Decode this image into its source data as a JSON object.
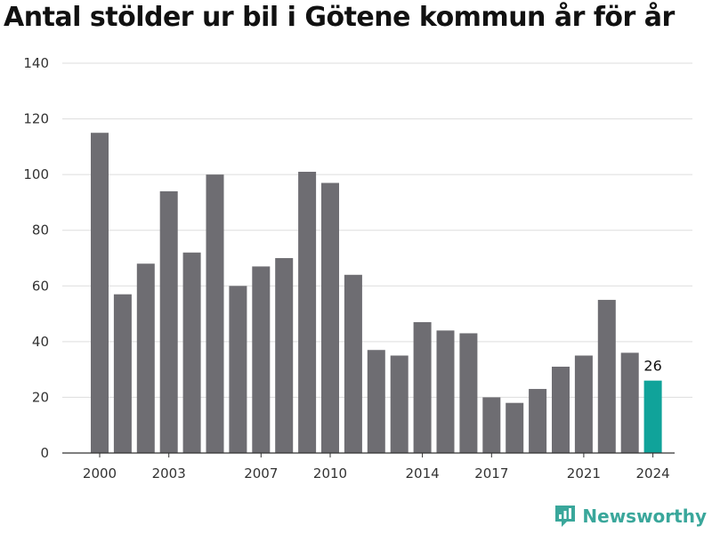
{
  "chart_data": {
    "type": "bar",
    "title": "Antal stölder ur bil i Götene kommun år för år",
    "xlabel": "",
    "ylabel": "",
    "ylim": [
      0,
      140
    ],
    "yticks": [
      0,
      20,
      40,
      60,
      80,
      100,
      120,
      140
    ],
    "xtick_labels": [
      "2000",
      "2003",
      "2007",
      "2010",
      "2014",
      "2017",
      "2021",
      "2024"
    ],
    "grid": true,
    "categories": [
      "2000",
      "2001",
      "2002",
      "2003",
      "2004",
      "2005",
      "2006",
      "2007",
      "2008",
      "2009",
      "2010",
      "2011",
      "2012",
      "2013",
      "2014",
      "2015",
      "2016",
      "2017",
      "2018",
      "2019",
      "2020",
      "2021",
      "2022",
      "2023",
      "2024"
    ],
    "values": [
      115,
      57,
      68,
      94,
      72,
      100,
      60,
      67,
      70,
      101,
      97,
      64,
      37,
      35,
      47,
      44,
      43,
      20,
      18,
      23,
      31,
      35,
      55,
      36,
      26
    ],
    "highlight": {
      "category": "2024",
      "label": "26"
    },
    "colors": {
      "bar": "#6e6d72",
      "highlight": "#10a39a",
      "grid": "#dddddd",
      "axis": "#333333"
    }
  },
  "brand": {
    "name": "Newsworthy",
    "icon": "newsworthy-logo-icon",
    "color": "#3aa79b"
  }
}
